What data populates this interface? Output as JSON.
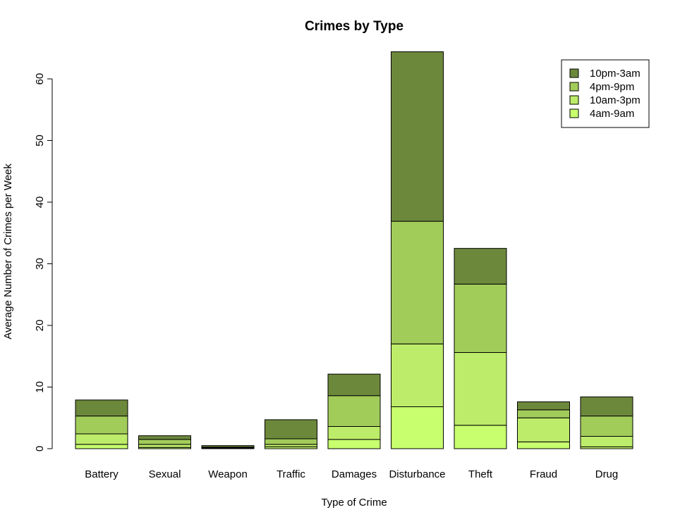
{
  "chart_data": {
    "type": "bar",
    "stacked": true,
    "title": "Crimes by Type",
    "xlabel": "Type of Crime",
    "ylabel": "Average Number of Crimes per Week",
    "ylim": [
      0,
      65
    ],
    "yticks": [
      0,
      10,
      20,
      30,
      40,
      50,
      60
    ],
    "grid": false,
    "legend_position": "top-right",
    "categories": [
      "Battery",
      "Sexual",
      "Weapon",
      "Traffic",
      "Damages",
      "Disturbance",
      "Theft",
      "Fraud",
      "Drug"
    ],
    "series": [
      {
        "name": "4am-9am",
        "color": "#c8ff6e",
        "values": [
          0.7,
          0.2,
          0.05,
          0.3,
          1.5,
          6.8,
          3.8,
          1.1,
          0.3
        ]
      },
      {
        "name": "10am-3pm",
        "color": "#bdec6a",
        "values": [
          1.7,
          0.5,
          0.1,
          0.4,
          2.1,
          10.2,
          11.8,
          3.9,
          1.7
        ]
      },
      {
        "name": "4pm-9pm",
        "color": "#a2cc5a",
        "values": [
          2.9,
          0.8,
          0.1,
          0.9,
          5.0,
          19.9,
          11.1,
          1.3,
          3.3
        ]
      },
      {
        "name": "10pm-3am",
        "color": "#6c883b",
        "values": [
          2.6,
          0.6,
          0.25,
          3.1,
          3.5,
          27.5,
          5.8,
          1.3,
          3.1
        ]
      }
    ]
  }
}
